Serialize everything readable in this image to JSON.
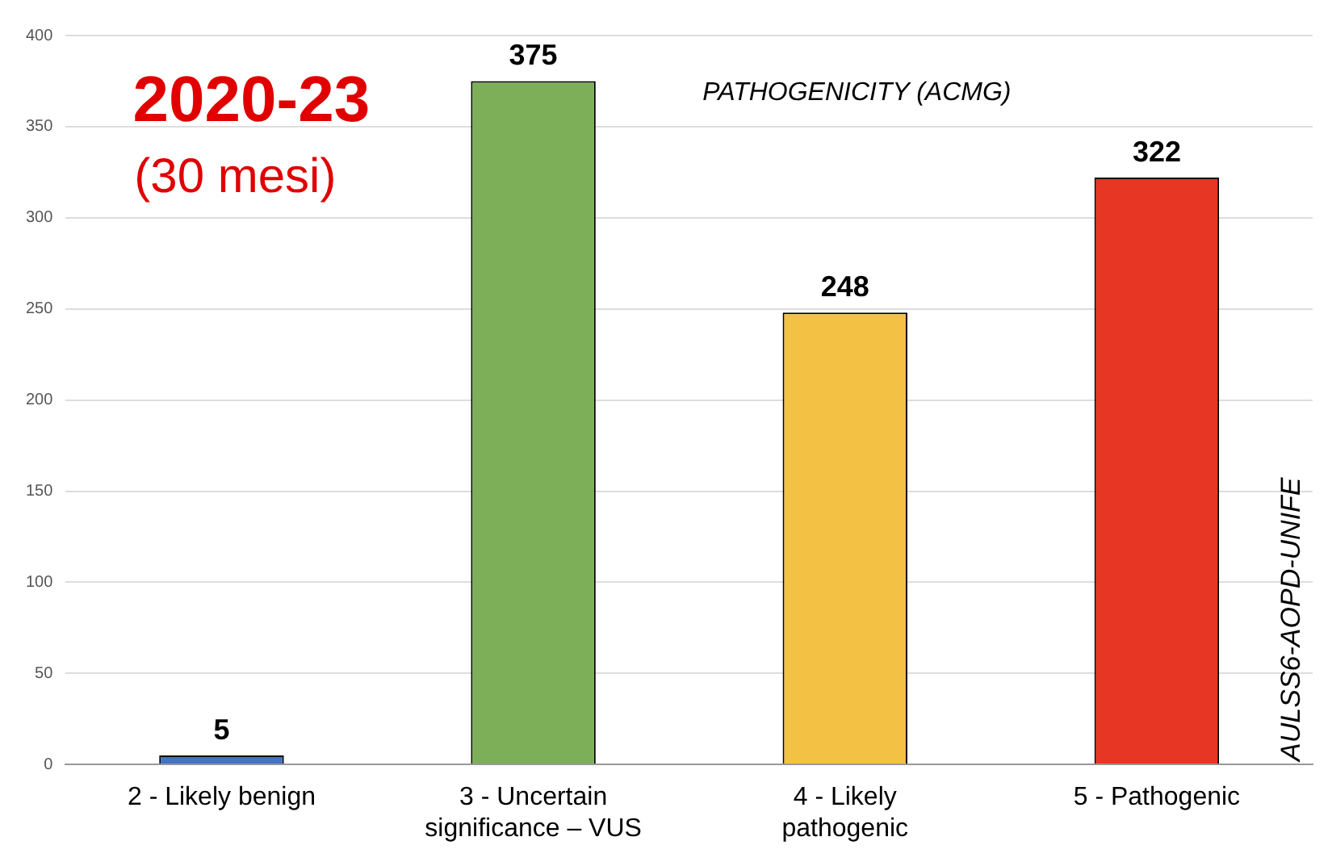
{
  "chart_data": {
    "type": "bar",
    "title": "2020-23",
    "subtitle": "(30 mesi)",
    "annotations": [
      "PATHOGENICITY (ACMG)",
      "AULSS6-AOPD-UNIFE"
    ],
    "categories": [
      "2 - Likely benign",
      "3 - Uncertain significance – VUS",
      "4 - Likely pathogenic",
      "5 - Pathogenic"
    ],
    "values": [
      5,
      375,
      248,
      322
    ],
    "colors": [
      "#4472c4",
      "#7daf58",
      "#f3c143",
      "#e83624"
    ],
    "ylim": [
      0,
      400
    ],
    "yticks": [
      0,
      50,
      100,
      150,
      200,
      250,
      300,
      350,
      400
    ],
    "grid": "y",
    "data_labels": true,
    "legend": false
  }
}
